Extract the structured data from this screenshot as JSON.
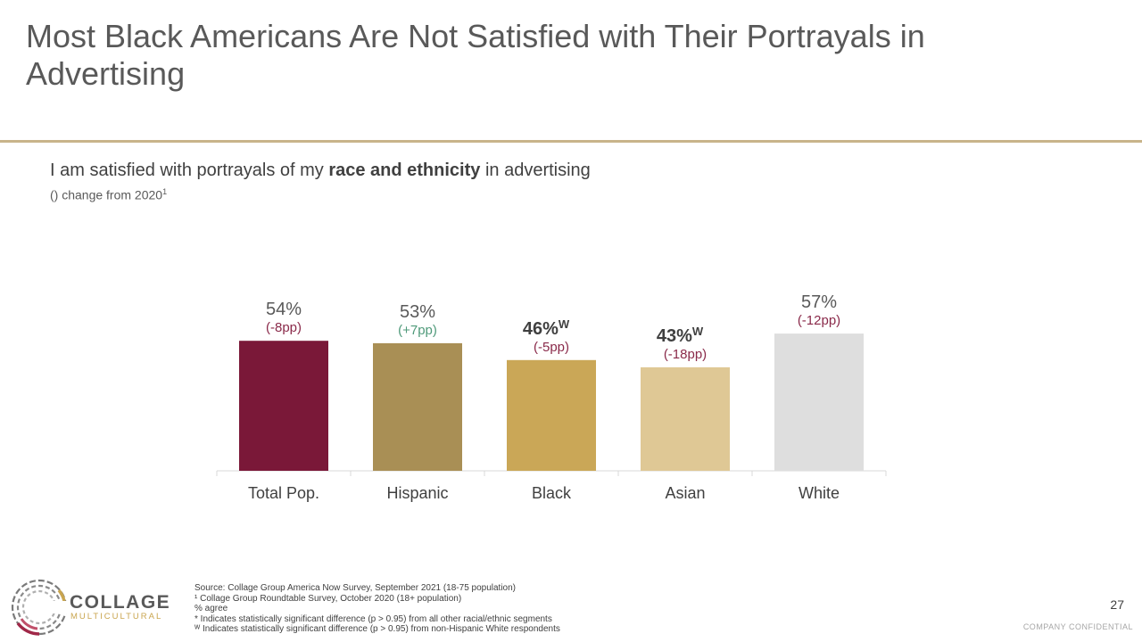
{
  "slide": {
    "title": "Most Black Americans Are Not Satisfied with Their Portrayals in Advertising",
    "question_before": "I am satisfied with portrayals of my ",
    "question_bold": "race and ethnicity",
    "question_after": " in advertising",
    "subnote": "() change from 2020",
    "subnote_sup": "1",
    "page_number": "27",
    "confidential": "COMPANY CONFIDENTIAL"
  },
  "logo": {
    "name": "COLLAGE",
    "subname": "MULTICULTURAL"
  },
  "footnotes": [
    "Source: Collage Group America Now Survey, September 2021 (18-75 population)",
    "¹ Collage Group Roundtable Survey, October 2020 (18+ population)",
    "% agree",
    "* Indicates statistically significant difference (p > 0.95) from all other racial/ethnic segments",
    "ᵂ Indicates statistically significant difference (p > 0.95) from non-Hispanic White respondents"
  ],
  "chart_data": {
    "type": "bar",
    "categories": [
      "Total Pop.",
      "Hispanic",
      "Black",
      "Asian",
      "White"
    ],
    "values": [
      54,
      53,
      46,
      43,
      57
    ],
    "value_labels": [
      "54%",
      "53%",
      "46%",
      "43%",
      "57%"
    ],
    "significance": [
      "",
      "",
      "W",
      "W",
      ""
    ],
    "changes": [
      "(-8pp)",
      "(+7pp)",
      "(-5pp)",
      "(-18pp)",
      "(-12pp)"
    ],
    "change_colors": [
      "#8a2a4a",
      "#4f9a7a",
      "#8a2a4a",
      "#8a2a4a",
      "#8a2a4a"
    ],
    "colors": [
      "#7a1838",
      "#a98f55",
      "#caa757",
      "#dfc895",
      "#dedede"
    ],
    "bold_labels": [
      false,
      false,
      true,
      true,
      false
    ],
    "ylim": [
      0,
      100
    ],
    "title": "",
    "xlabel": "",
    "ylabel": ""
  }
}
